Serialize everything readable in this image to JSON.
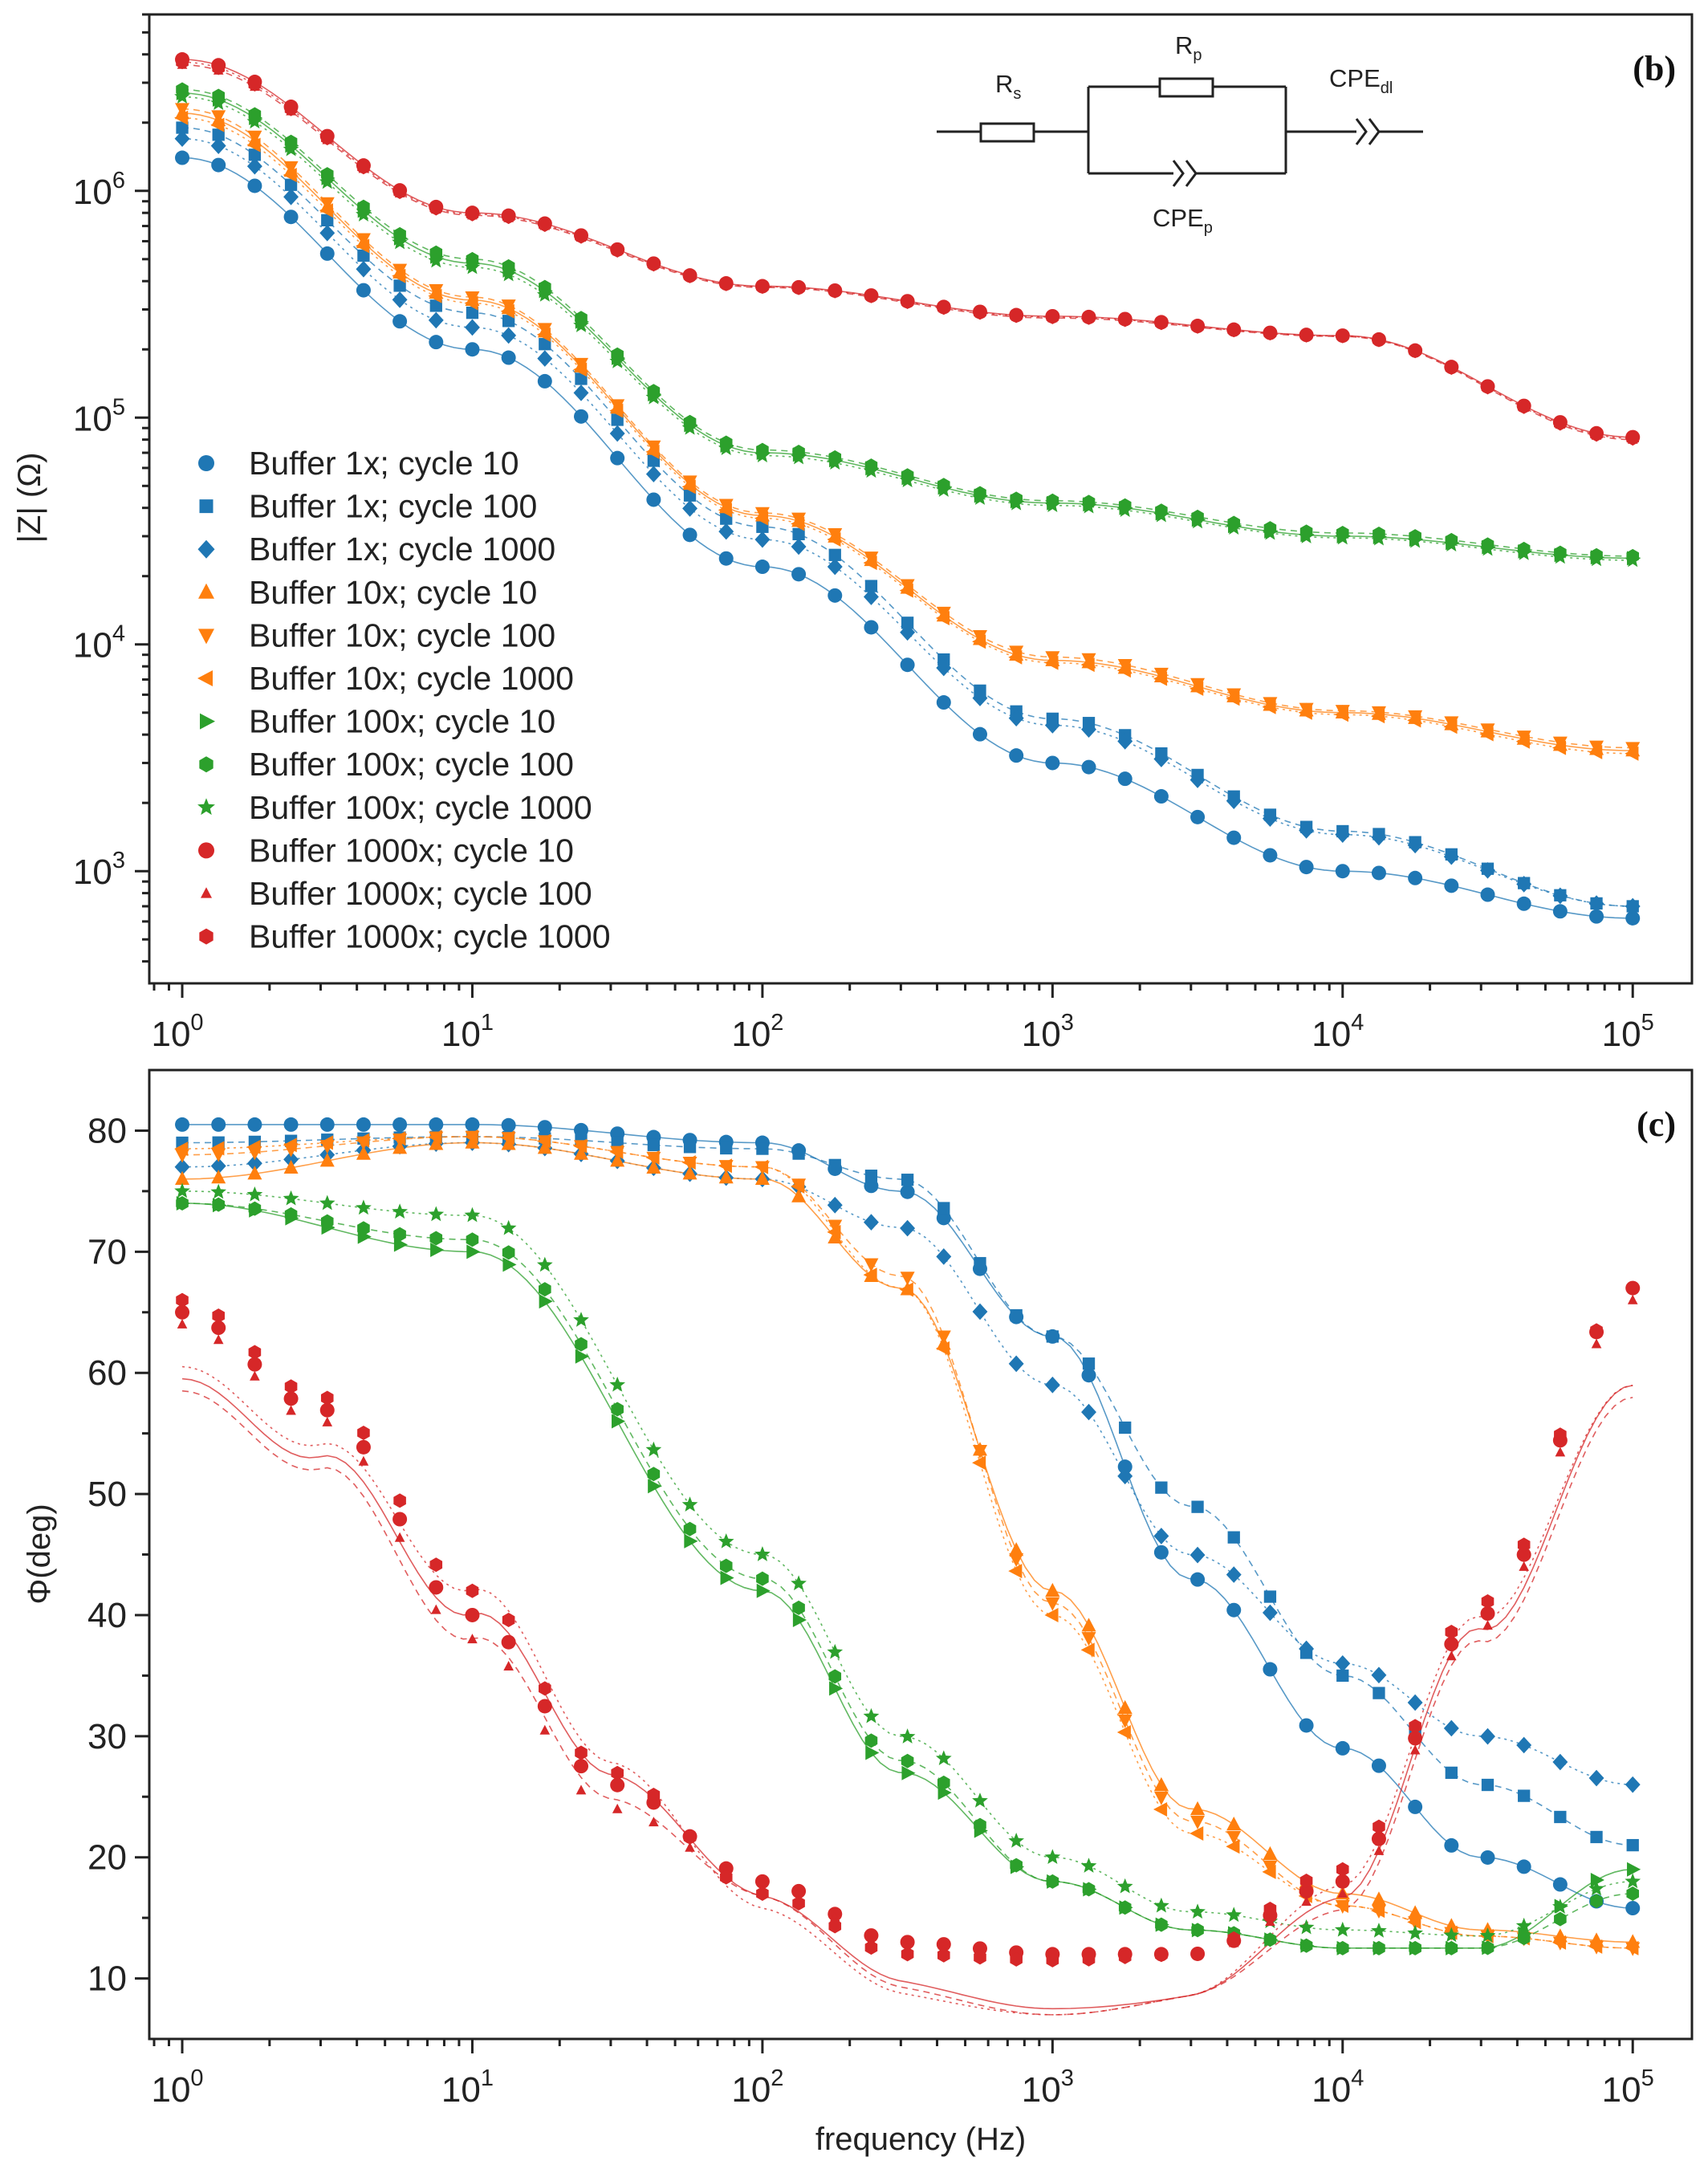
{
  "colors": {
    "blue": "#1f77b4",
    "orange": "#ff7f0e",
    "green": "#2ca02c",
    "red": "#d62728",
    "axis": "#222222"
  },
  "chart_data": [
    {
      "type": "scatter",
      "tag": "(b)",
      "title": "",
      "xlabel": "",
      "ylabel": "|Z| (Ω)",
      "xscale": "log",
      "yscale": "log",
      "xlim": [
        0.77,
        160000
      ],
      "ylim": [
        320,
        6000000
      ],
      "x_ticks": [
        {
          "base": "10",
          "exp": "0"
        },
        {
          "base": "10",
          "exp": "1"
        },
        {
          "base": "10",
          "exp": "2"
        },
        {
          "base": "10",
          "exp": "3"
        },
        {
          "base": "10",
          "exp": "4"
        },
        {
          "base": "10",
          "exp": "5"
        }
      ],
      "y_ticks": [
        {
          "base": "10",
          "exp": "3",
          "value": 1000
        },
        {
          "base": "10",
          "exp": "4",
          "value": 10000
        },
        {
          "base": "10",
          "exp": "5",
          "value": 100000
        },
        {
          "base": "10",
          "exp": "6",
          "value": 1000000
        }
      ],
      "legend_position": "left",
      "legend": [
        {
          "label": "Buffer 1x; cycle 10",
          "color": "blue",
          "marker": "circle"
        },
        {
          "label": "Buffer 1x; cycle 100",
          "color": "blue",
          "marker": "square"
        },
        {
          "label": "Buffer 1x; cycle 1000",
          "color": "blue",
          "marker": "diamond"
        },
        {
          "label": "Buffer 10x; cycle 10",
          "color": "orange",
          "marker": "triangle-up"
        },
        {
          "label": "Buffer 10x; cycle 100",
          "color": "orange",
          "marker": "triangle-down"
        },
        {
          "label": "Buffer 10x; cycle 1000",
          "color": "orange",
          "marker": "triangle-left"
        },
        {
          "label": "Buffer 100x; cycle 10",
          "color": "green",
          "marker": "triangle-right"
        },
        {
          "label": "Buffer 100x; cycle 100",
          "color": "green",
          "marker": "hexagon"
        },
        {
          "label": "Buffer 100x; cycle 1000",
          "color": "green",
          "marker": "star"
        },
        {
          "label": "Buffer 1000x; cycle 10",
          "color": "red",
          "marker": "circle"
        },
        {
          "label": "Buffer 1000x; cycle 100",
          "color": "red",
          "marker": "triangle-up-small"
        },
        {
          "label": "Buffer 1000x; cycle 1000",
          "color": "red",
          "marker": "hexagon"
        }
      ],
      "circuit": {
        "rs": "R",
        "rs_sub": "s",
        "rp": "R",
        "rp_sub": "p",
        "cpe_dl": "CPE",
        "cpe_dl_sub": "dl",
        "cpe_p": "CPE",
        "cpe_p_sub": "p"
      },
      "series": [
        {
          "name": "Buffer 1x; cycle 10",
          "x": [
            1,
            10,
            100,
            1000,
            10000,
            100000
          ],
          "y": [
            1400000,
            200000,
            22000,
            3000,
            1000,
            620
          ]
        },
        {
          "name": "Buffer 1x; cycle 100",
          "x": [
            1,
            10,
            100,
            1000,
            10000,
            100000
          ],
          "y": [
            1900000,
            290000,
            33000,
            4700,
            1500,
            700
          ]
        },
        {
          "name": "Buffer 1x; cycle 1000",
          "x": [
            1,
            10,
            100,
            1000,
            10000,
            100000
          ],
          "y": [
            1700000,
            250000,
            29000,
            4400,
            1450,
            700
          ]
        },
        {
          "name": "Buffer 10x; cycle 10",
          "x": [
            1,
            10,
            100,
            1000,
            10000,
            100000
          ],
          "y": [
            2200000,
            330000,
            37000,
            8500,
            5000,
            3400
          ]
        },
        {
          "name": "Buffer 10x; cycle 100",
          "x": [
            1,
            10,
            100,
            1000,
            10000,
            100000
          ],
          "y": [
            2300000,
            340000,
            38000,
            8800,
            5100,
            3500
          ]
        },
        {
          "name": "Buffer 10x; cycle 1000",
          "x": [
            1,
            10,
            100,
            1000,
            10000,
            100000
          ],
          "y": [
            2100000,
            320000,
            36000,
            8300,
            4900,
            3300
          ]
        },
        {
          "name": "Buffer 100x; cycle 10",
          "x": [
            1,
            10,
            100,
            1000,
            10000,
            100000
          ],
          "y": [
            2700000,
            480000,
            70000,
            42000,
            30000,
            24000
          ]
        },
        {
          "name": "Buffer 100x; cycle 100",
          "x": [
            1,
            10,
            100,
            1000,
            10000,
            100000
          ],
          "y": [
            2800000,
            500000,
            72000,
            43000,
            31000,
            24500
          ]
        },
        {
          "name": "Buffer 100x; cycle 1000",
          "x": [
            1,
            10,
            100,
            1000,
            10000,
            100000
          ],
          "y": [
            2600000,
            460000,
            68000,
            41000,
            29500,
            23500
          ]
        },
        {
          "name": "Buffer 1000x; cycle 10",
          "x": [
            1,
            10,
            100,
            1000,
            10000,
            100000
          ],
          "y": [
            3800000,
            800000,
            380000,
            280000,
            230000,
            82000
          ]
        },
        {
          "name": "Buffer 1000x; cycle 100",
          "x": [
            1,
            10,
            100,
            1000,
            10000,
            100000
          ],
          "y": [
            3600000,
            780000,
            375000,
            275000,
            228000,
            80000
          ]
        },
        {
          "name": "Buffer 1000x; cycle 1000",
          "x": [
            1,
            10,
            100,
            1000,
            10000,
            100000
          ],
          "y": [
            3700000,
            790000,
            378000,
            278000,
            229000,
            81000
          ]
        }
      ]
    },
    {
      "type": "scatter",
      "tag": "(c)",
      "title": "",
      "xlabel": "frequency (Hz)",
      "ylabel": "Φ(deg)",
      "xscale": "log",
      "yscale": "linear",
      "xlim": [
        0.77,
        160000
      ],
      "ylim": [
        5,
        85
      ],
      "x_ticks": [
        {
          "base": "10",
          "exp": "0"
        },
        {
          "base": "10",
          "exp": "1"
        },
        {
          "base": "10",
          "exp": "2"
        },
        {
          "base": "10",
          "exp": "3"
        },
        {
          "base": "10",
          "exp": "4"
        },
        {
          "base": "10",
          "exp": "5"
        }
      ],
      "y_ticks": [
        "10",
        "20",
        "30",
        "40",
        "50",
        "60",
        "70",
        "80"
      ],
      "series": [
        {
          "name": "Buffer 1x; cycle 10",
          "x": [
            1,
            10,
            100,
            300,
            1000,
            3000,
            10000,
            30000,
            100000
          ],
          "y": [
            80.5,
            80.5,
            79,
            75,
            63,
            43,
            29,
            20,
            15.8
          ]
        },
        {
          "name": "Buffer 1x; cycle 100",
          "x": [
            1,
            10,
            100,
            300,
            1000,
            3000,
            10000,
            30000,
            100000
          ],
          "y": [
            79,
            79.5,
            78.5,
            76,
            63,
            49,
            35,
            26,
            21
          ]
        },
        {
          "name": "Buffer 1x; cycle 1000",
          "x": [
            1,
            10,
            100,
            300,
            1000,
            3000,
            10000,
            30000,
            100000
          ],
          "y": [
            77,
            79,
            76,
            72,
            59,
            45,
            36,
            30,
            26
          ]
        },
        {
          "name": "Buffer 10x; cycle 10",
          "x": [
            1,
            10,
            100,
            300,
            1000,
            3000,
            10000,
            30000,
            100000
          ],
          "y": [
            76,
            79,
            76,
            67,
            42,
            24,
            17,
            14,
            13
          ]
        },
        {
          "name": "Buffer 10x; cycle 100",
          "x": [
            1,
            10,
            100,
            300,
            1000,
            3000,
            10000,
            30000,
            100000
          ],
          "y": [
            78,
            79.5,
            77,
            68,
            41,
            23,
            16,
            13.5,
            12.5
          ]
        },
        {
          "name": "Buffer 10x; cycle 1000",
          "x": [
            1,
            10,
            100,
            300,
            1000,
            3000,
            10000,
            30000,
            100000
          ],
          "y": [
            78.5,
            79.5,
            77,
            67,
            40,
            22,
            16,
            13.5,
            12.5
          ]
        },
        {
          "name": "Buffer 100x; cycle 10",
          "x": [
            1,
            10,
            100,
            300,
            1000,
            3000,
            10000,
            30000,
            100000
          ],
          "y": [
            74,
            70,
            42,
            27,
            18,
            14,
            12.5,
            12.5,
            19
          ]
        },
        {
          "name": "Buffer 100x; cycle 100",
          "x": [
            1,
            10,
            100,
            300,
            1000,
            3000,
            10000,
            30000,
            100000
          ],
          "y": [
            74,
            71,
            43,
            28,
            18,
            14,
            12.5,
            12.5,
            17
          ]
        },
        {
          "name": "Buffer 100x; cycle 1000",
          "x": [
            1,
            10,
            100,
            300,
            1000,
            3000,
            10000,
            30000,
            100000
          ],
          "y": [
            75,
            73,
            45,
            30,
            20,
            15.5,
            14,
            13.5,
            18
          ]
        },
        {
          "name": "Buffer 1000x; cycle 10",
          "x": [
            1,
            3,
            10,
            30,
            100,
            300,
            1000,
            3000,
            10000,
            30000,
            100000
          ],
          "y": [
            65,
            57,
            40,
            26,
            18,
            13,
            12,
            12,
            18,
            40,
            67
          ]
        },
        {
          "name": "Buffer 1000x; cycle 100",
          "x": [
            1,
            3,
            10,
            30,
            100,
            300,
            1000,
            3000,
            10000,
            30000,
            100000
          ],
          "y": [
            64,
            56,
            38,
            24,
            18,
            12.5,
            11.5,
            12,
            17,
            39,
            66
          ]
        },
        {
          "name": "Buffer 1000x; cycle 1000",
          "x": [
            1,
            3,
            10,
            30,
            100,
            300,
            1000,
            3000,
            10000,
            30000,
            100000
          ],
          "y": [
            66,
            58,
            42,
            27,
            17,
            12,
            11.5,
            12,
            19,
            41,
            67
          ]
        }
      ]
    }
  ]
}
